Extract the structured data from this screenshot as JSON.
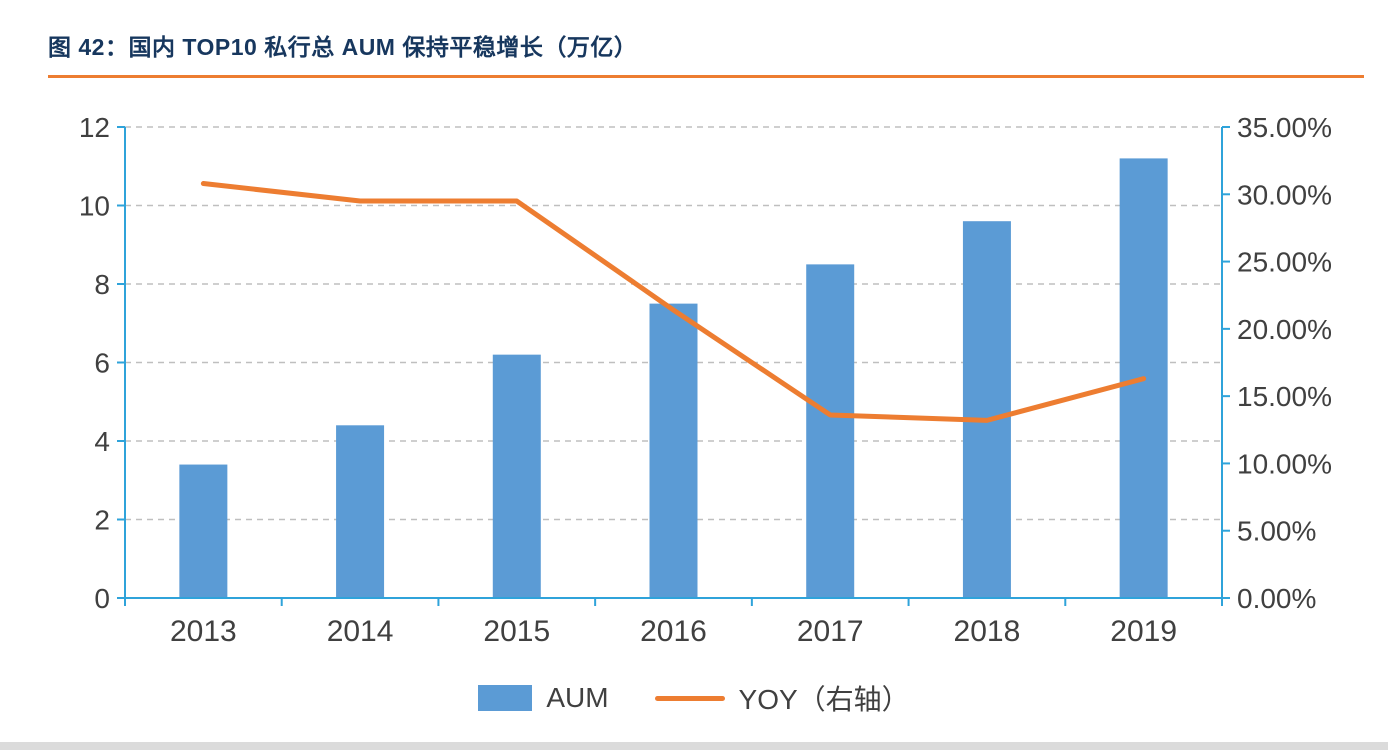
{
  "header": {
    "title": "图 42：国内 TOP10 私行总 AUM 保持平稳增长（万亿）"
  },
  "colors": {
    "bar": "#5B9BD5",
    "line": "#ED7D31",
    "axis": "#2FA3DA",
    "grid": "#BFBFBF",
    "title": "#17375E",
    "rule": "#ED7D31",
    "tick_label": "#404040"
  },
  "chart_data": {
    "type": "combo bar+line",
    "title": "图 42：国内 TOP10 私行总 AUM 保持平稳增长（万亿）",
    "categories": [
      "2013",
      "2014",
      "2015",
      "2016",
      "2017",
      "2018",
      "2019"
    ],
    "series": [
      {
        "name": "AUM",
        "type": "bar",
        "axis": "left",
        "values": [
          3.4,
          4.4,
          6.2,
          7.5,
          8.5,
          9.6,
          11.2
        ]
      },
      {
        "name": "YOY（右轴）",
        "type": "line",
        "axis": "right",
        "unit": "%",
        "values": [
          30.8,
          29.5,
          29.5,
          21.4,
          13.6,
          13.2,
          16.3
        ]
      }
    ],
    "left_axis": {
      "min": 0,
      "max": 12,
      "tick_values": [
        0,
        2,
        4,
        6,
        8,
        10,
        12
      ],
      "tick_labels": [
        "0",
        "2",
        "4",
        "6",
        "8",
        "10",
        "12"
      ]
    },
    "right_axis": {
      "min": 0,
      "max": 35,
      "tick_values": [
        0,
        5,
        10,
        15,
        20,
        25,
        30,
        35
      ],
      "tick_labels": [
        "0.00%",
        "5.00%",
        "10.00%",
        "15.00%",
        "20.00%",
        "25.00%",
        "30.00%",
        "35.00%"
      ]
    },
    "grid": "dashed horizontal gridlines",
    "legend_position": "bottom center",
    "legend": [
      {
        "label": "AUM",
        "swatch": "bar"
      },
      {
        "label": "YOY（右轴）",
        "swatch": "line"
      }
    ]
  }
}
